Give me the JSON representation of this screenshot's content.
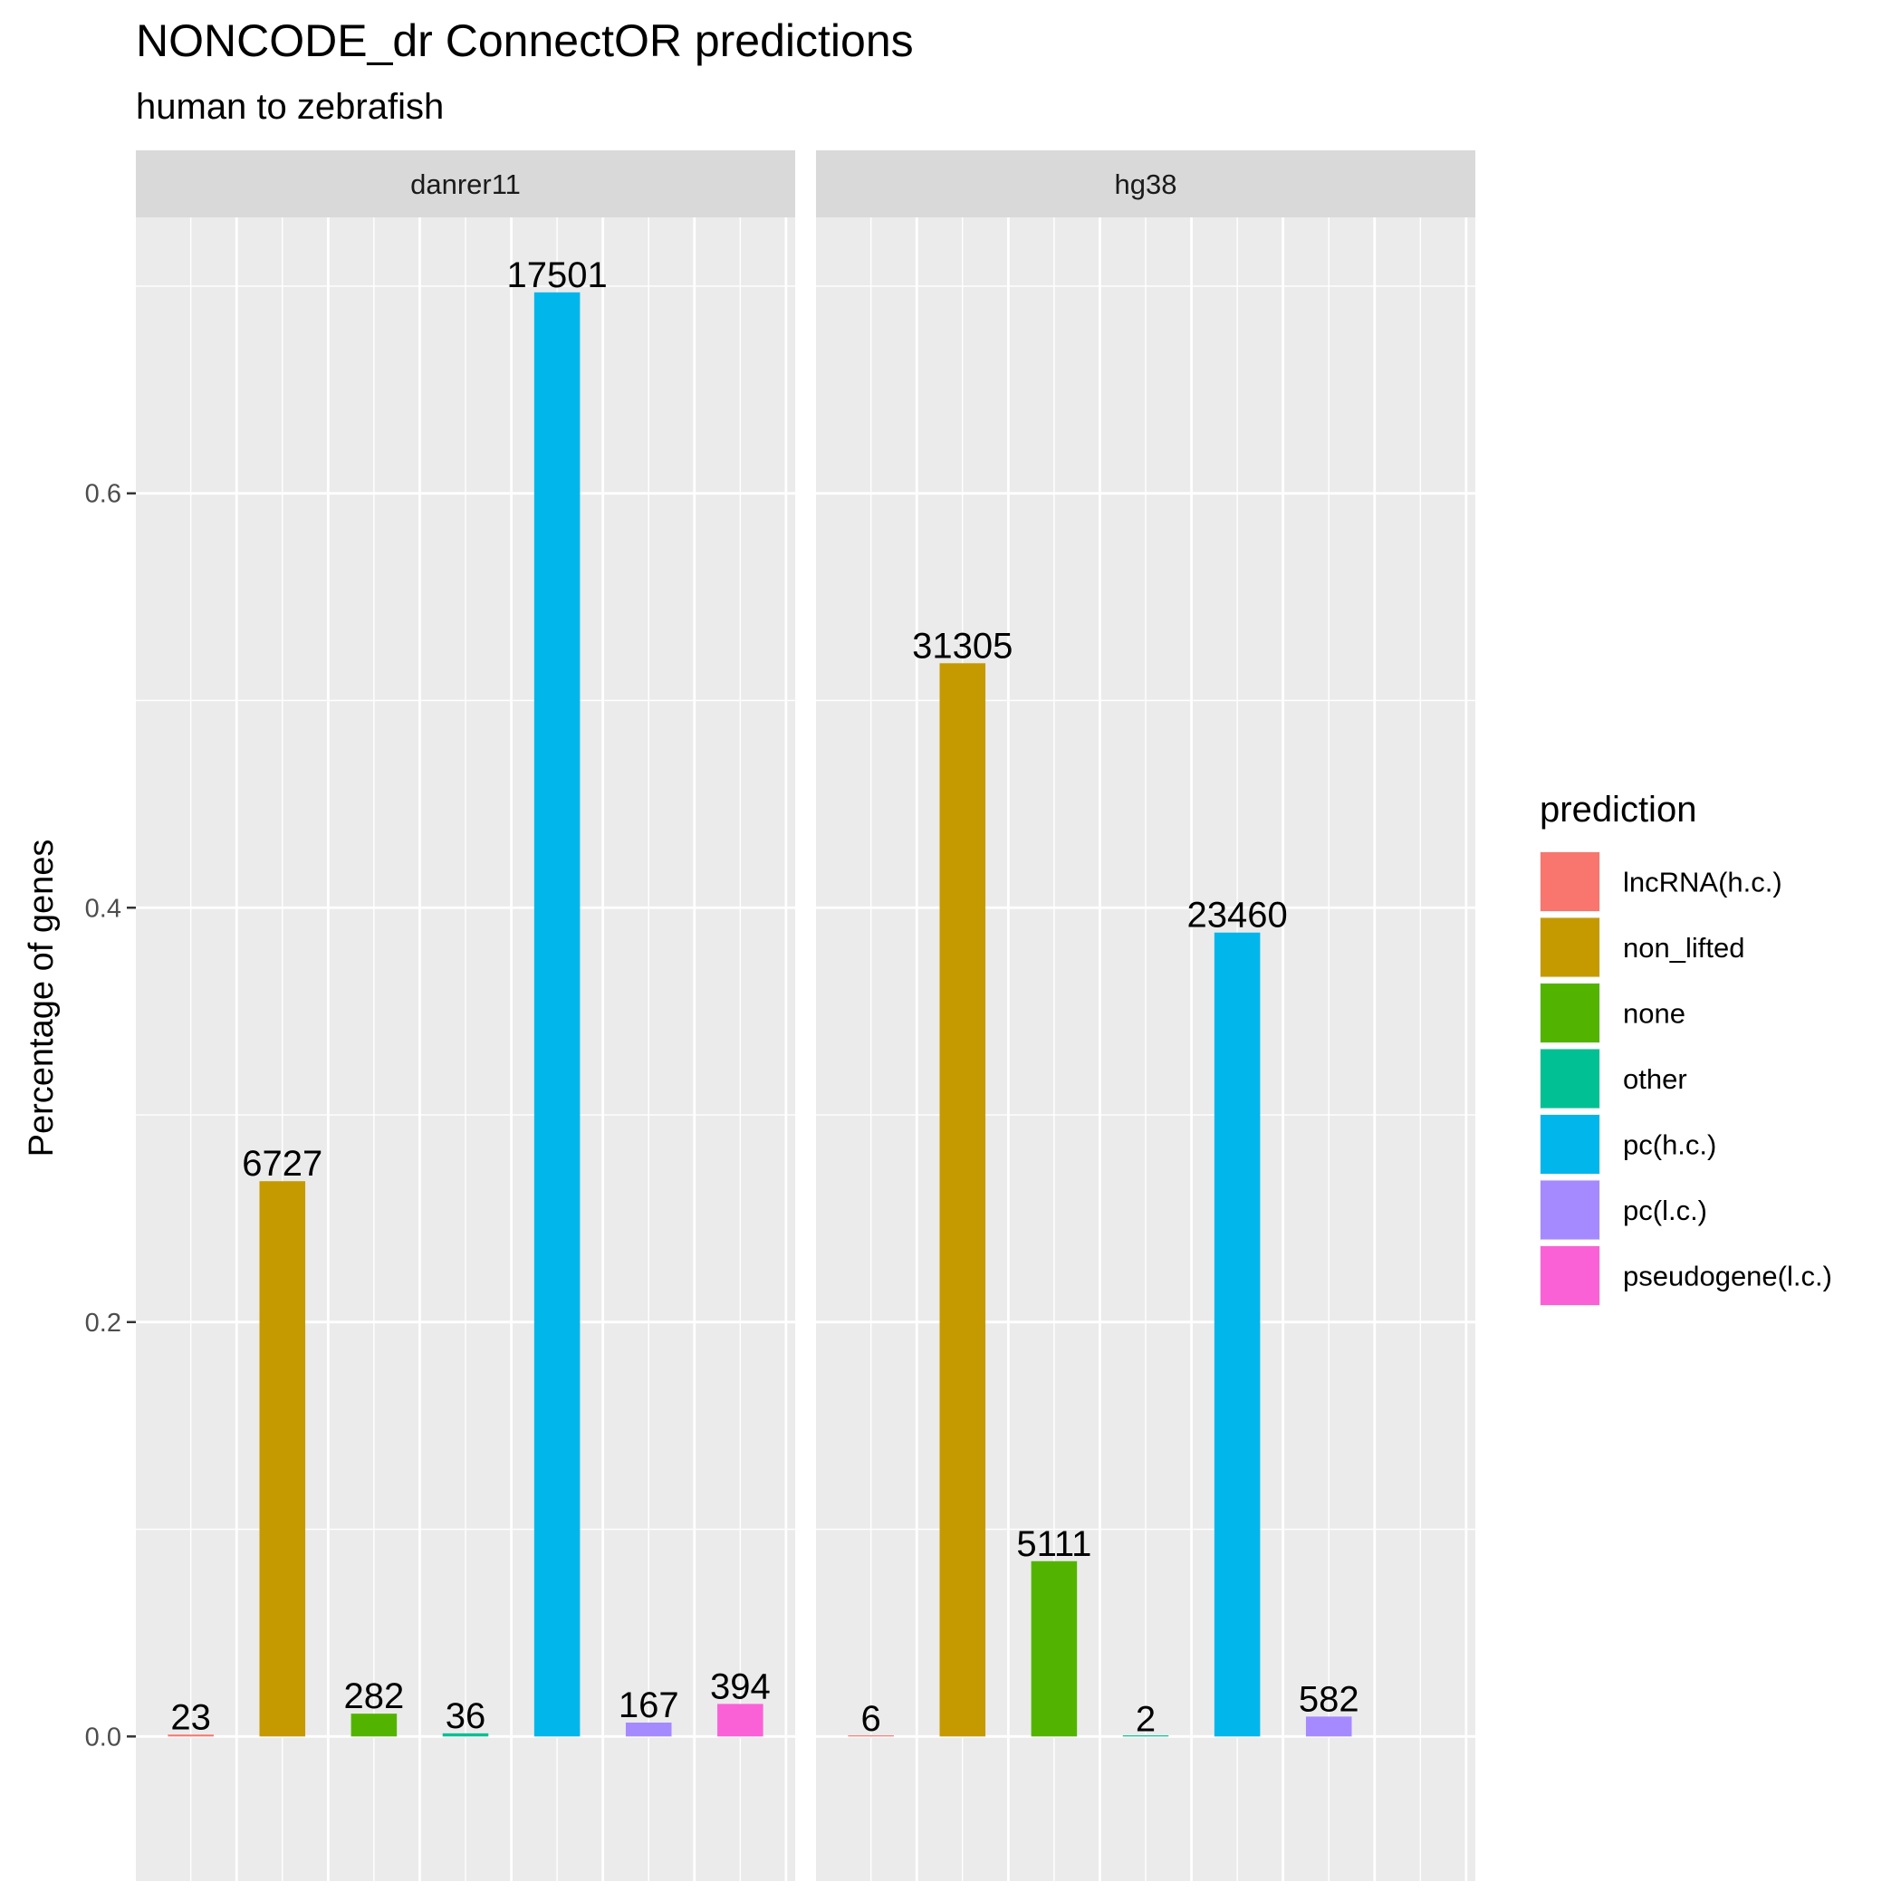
{
  "chart_data": {
    "type": "bar",
    "title": "NONCODE_dr ConnectOR predictions",
    "subtitle": "human to zebrafish",
    "xlabel": "",
    "ylabel": "Percentage of genes",
    "ylim": [
      -0.0698,
      0.7332
    ],
    "yticks": [
      0.0,
      0.2,
      0.4,
      0.6
    ],
    "ytick_labels": [
      "0.0",
      "0.2",
      "0.4",
      "0.6"
    ],
    "grid": true,
    "legend": {
      "title": "prediction",
      "position": "right",
      "entries": [
        {
          "name": "lncRNA(h.c.)",
          "color": "#F8766D"
        },
        {
          "name": "non_lifted",
          "color": "#C49A00"
        },
        {
          "name": "none",
          "color": "#53B400"
        },
        {
          "name": "other",
          "color": "#00C094"
        },
        {
          "name": "pc(h.c.)",
          "color": "#00B6EB"
        },
        {
          "name": "pc(l.c.)",
          "color": "#A58AFF"
        },
        {
          "name": "pseudogene(l.c.)",
          "color": "#FB61D7"
        }
      ]
    },
    "panels": [
      {
        "name": "danrer11",
        "bars": [
          {
            "category": "lncRNA(h.c.)",
            "value": 0.0009,
            "label": "23"
          },
          {
            "category": "non_lifted",
            "value": 0.268,
            "label": "6727"
          },
          {
            "category": "none",
            "value": 0.011,
            "label": "282"
          },
          {
            "category": "other",
            "value": 0.0015,
            "label": "36"
          },
          {
            "category": "pc(h.c.)",
            "value": 0.697,
            "label": "17501"
          },
          {
            "category": "pc(l.c.)",
            "value": 0.0067,
            "label": "167"
          },
          {
            "category": "pseudogene(l.c.)",
            "value": 0.0157,
            "label": "394"
          }
        ]
      },
      {
        "name": "hg38",
        "bars": [
          {
            "category": "lncRNA(h.c.)",
            "value": 0.0001,
            "label": "6"
          },
          {
            "category": "non_lifted",
            "value": 0.518,
            "label": "31305"
          },
          {
            "category": "none",
            "value": 0.0846,
            "label": "5111"
          },
          {
            "category": "other",
            "value": 3e-05,
            "label": "2"
          },
          {
            "category": "pc(h.c.)",
            "value": 0.388,
            "label": "23460"
          },
          {
            "category": "pc(l.c.)",
            "value": 0.0096,
            "label": "582"
          },
          {
            "category": "pseudogene(l.c.)",
            "value": null,
            "label": null
          }
        ]
      }
    ]
  }
}
